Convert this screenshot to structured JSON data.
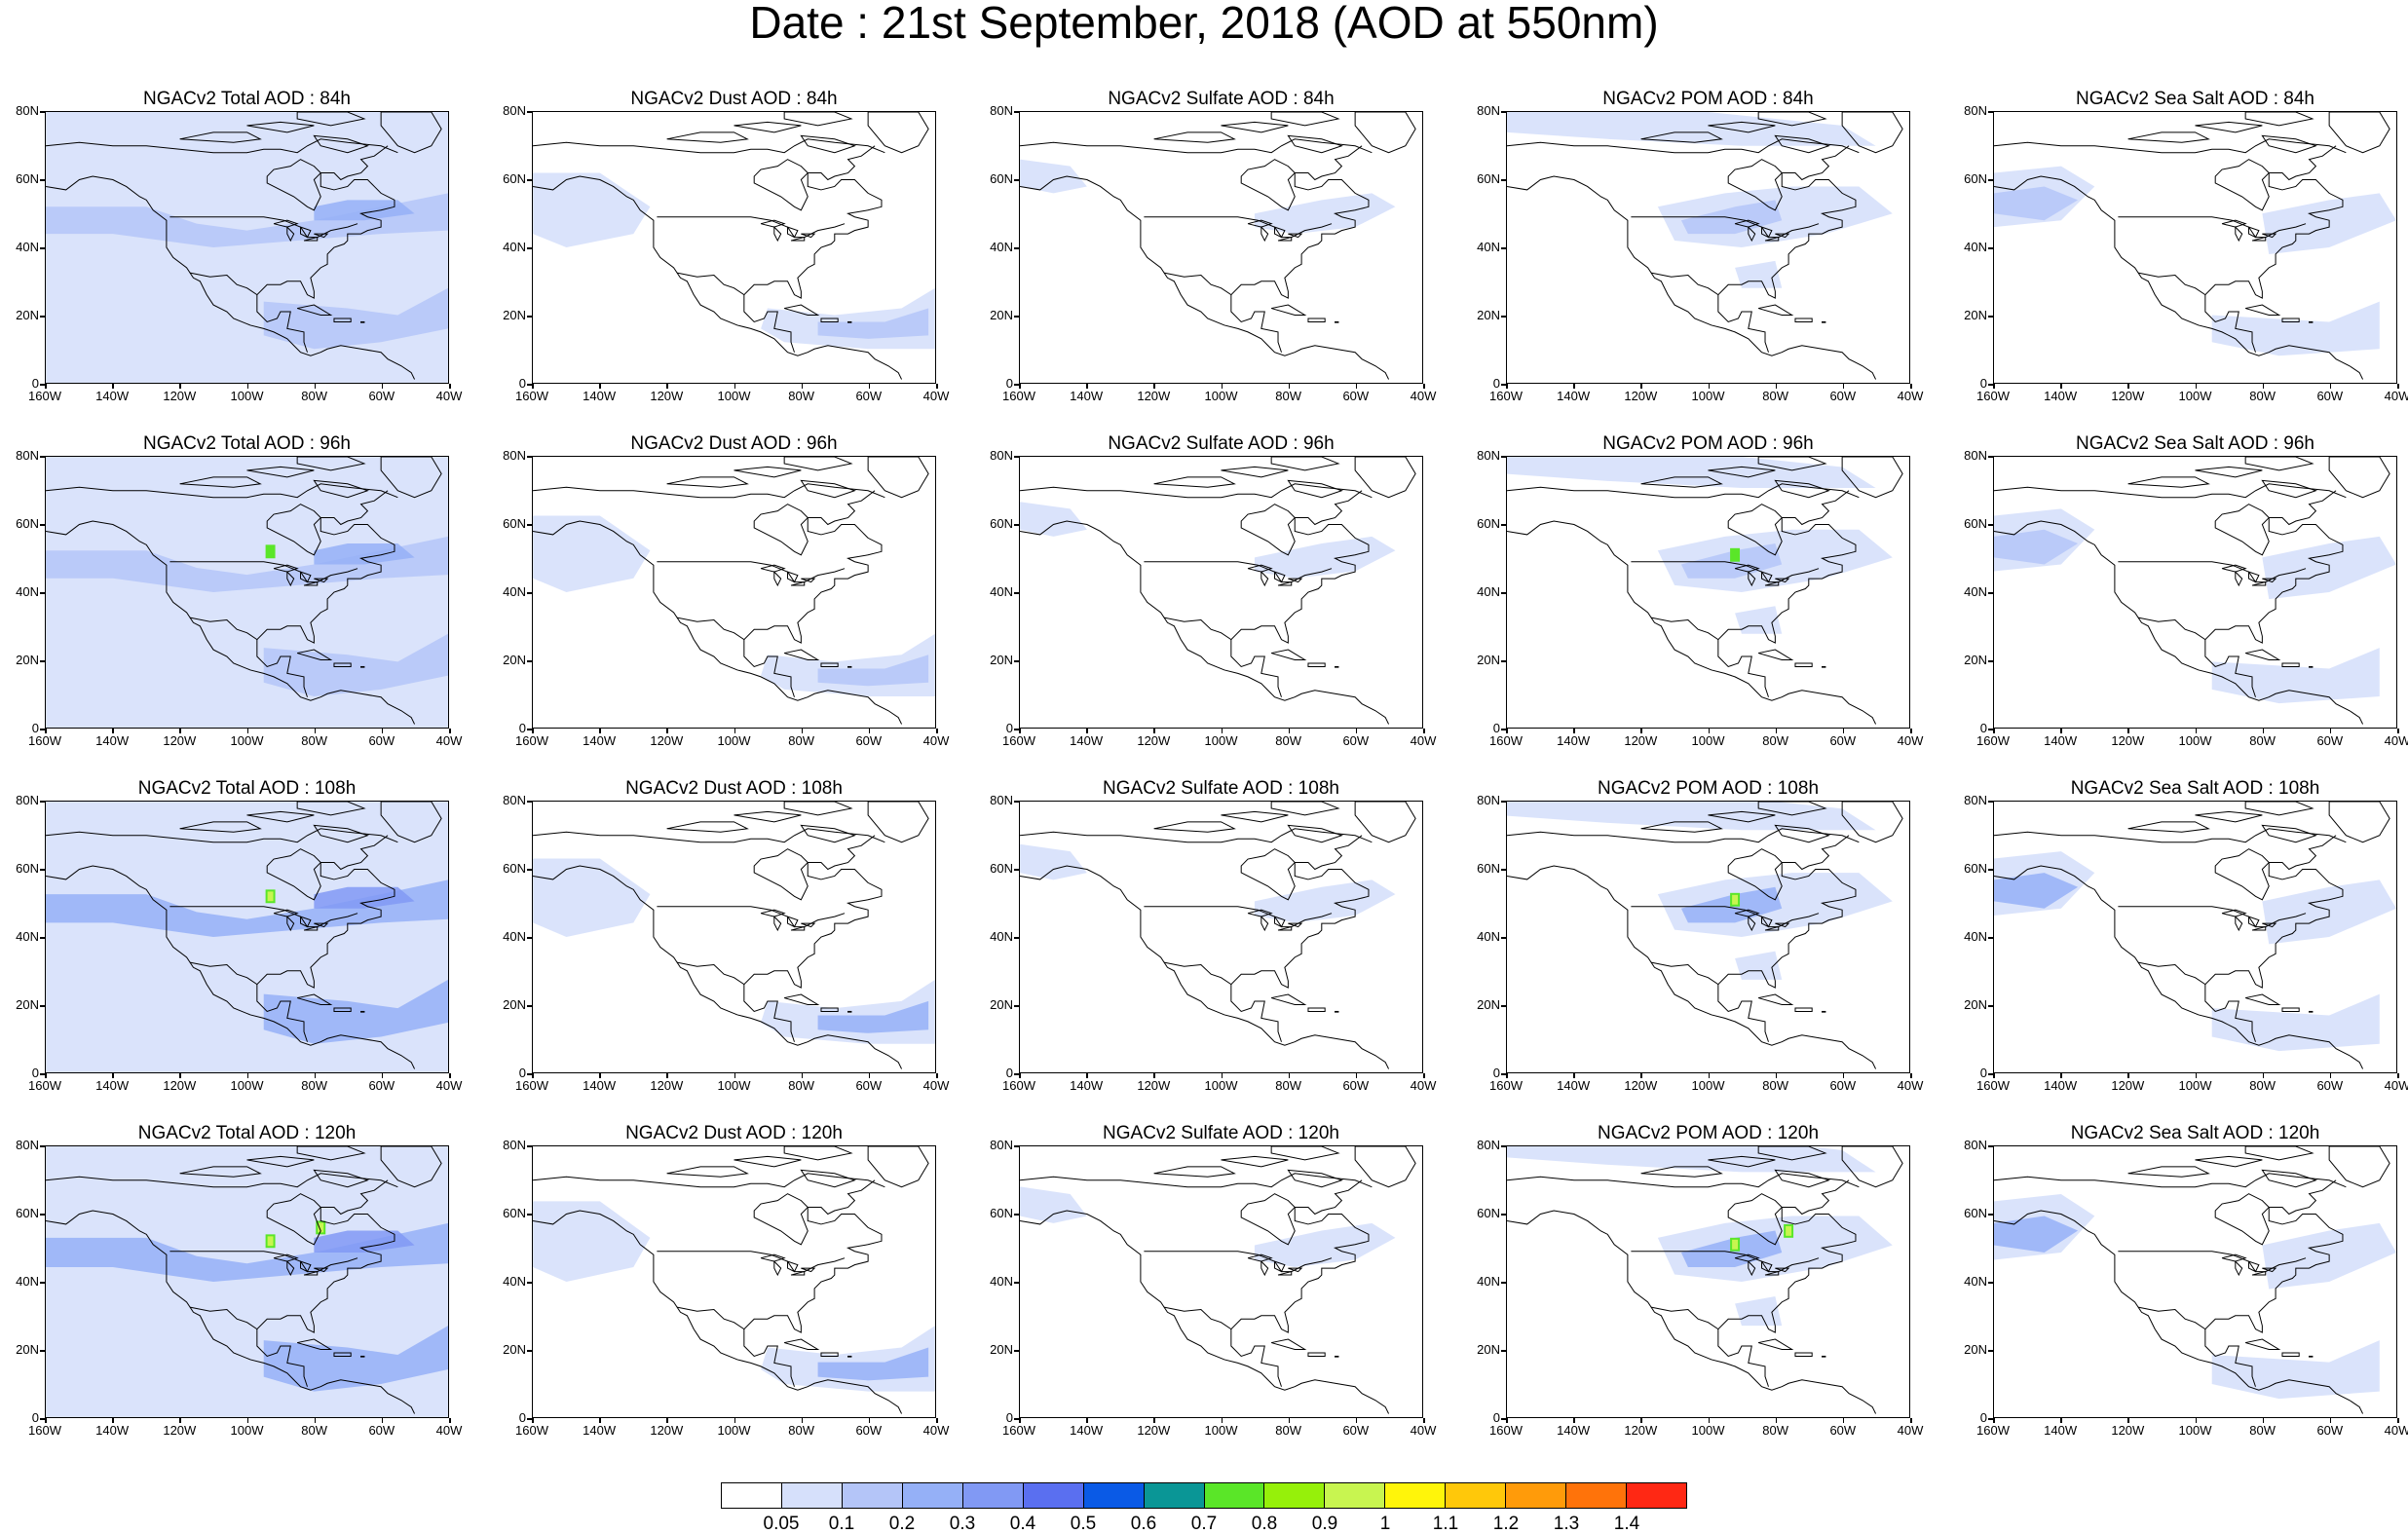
{
  "title": "Date : 21st September, 2018 (AOD at 550nm)",
  "lat_ticks": [
    "80N",
    "60N",
    "40N",
    "20N",
    "0"
  ],
  "lon_ticks": [
    "160W",
    "140W",
    "120W",
    "100W",
    "80W",
    "60W",
    "40W"
  ],
  "panels": [
    {
      "title": "NGACv2 Total AOD : 84h",
      "species": "total",
      "lead": 84
    },
    {
      "title": "NGACv2 Dust AOD : 84h",
      "species": "dust",
      "lead": 84
    },
    {
      "title": "NGACv2 Sulfate AOD : 84h",
      "species": "sulfate",
      "lead": 84
    },
    {
      "title": "NGACv2 POM AOD : 84h",
      "species": "pom",
      "lead": 84
    },
    {
      "title": "NGACv2 Sea Salt AOD : 84h",
      "species": "seasalt",
      "lead": 84
    },
    {
      "title": "NGACv2 Total AOD : 96h",
      "species": "total",
      "lead": 96
    },
    {
      "title": "NGACv2 Dust AOD : 96h",
      "species": "dust",
      "lead": 96
    },
    {
      "title": "NGACv2 Sulfate AOD : 96h",
      "species": "sulfate",
      "lead": 96
    },
    {
      "title": "NGACv2 POM AOD : 96h",
      "species": "pom",
      "lead": 96
    },
    {
      "title": "NGACv2 Sea Salt AOD : 96h",
      "species": "seasalt",
      "lead": 96
    },
    {
      "title": "NGACv2 Total AOD : 108h",
      "species": "total",
      "lead": 108
    },
    {
      "title": "NGACv2 Dust AOD : 108h",
      "species": "dust",
      "lead": 108
    },
    {
      "title": "NGACv2 Sulfate AOD : 108h",
      "species": "sulfate",
      "lead": 108
    },
    {
      "title": "NGACv2 POM AOD : 108h",
      "species": "pom",
      "lead": 108
    },
    {
      "title": "NGACv2 Sea Salt AOD : 108h",
      "species": "seasalt",
      "lead": 108
    },
    {
      "title": "NGACv2 Total AOD : 120h",
      "species": "total",
      "lead": 120
    },
    {
      "title": "NGACv2 Dust AOD : 120h",
      "species": "dust",
      "lead": 120
    },
    {
      "title": "NGACv2 Sulfate AOD : 120h",
      "species": "sulfate",
      "lead": 120
    },
    {
      "title": "NGACv2 POM AOD : 120h",
      "species": "pom",
      "lead": 120
    },
    {
      "title": "NGACv2 Sea Salt  AOD : 120h",
      "species": "seasalt",
      "lead": 120
    }
  ],
  "colorbar": {
    "colors": [
      "#ffffff",
      "#d6e0fb",
      "#b4c5f8",
      "#95b0f7",
      "#8199f4",
      "#5a6ff0",
      "#0a5ae6",
      "#0a9696",
      "#5ae628",
      "#96f00a",
      "#c8f550",
      "#fff50a",
      "#ffc80a",
      "#ff9b0a",
      "#ff730a",
      "#ff2814"
    ],
    "labels": [
      "0.05",
      "0.1",
      "0.2",
      "0.3",
      "0.4",
      "0.5",
      "0.6",
      "0.7",
      "0.8",
      "0.9",
      "1",
      "1.1",
      "1.2",
      "1.3",
      "1.4"
    ]
  },
  "colors": {
    "coastline": "#000000",
    "low_aod": "#d6e0fb",
    "mid_aod": "#95b0f7",
    "high_aod": "#5a6ff0"
  }
}
